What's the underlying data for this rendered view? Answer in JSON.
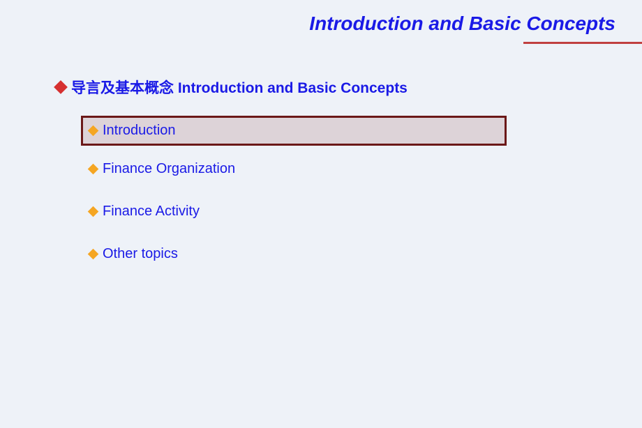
{
  "slide": {
    "title": "Introduction and Basic Concepts",
    "title_color": "#1a1ae6",
    "underline_color": "#c04040",
    "background_color": "#eef2f8"
  },
  "section": {
    "bullet_color": "#d63030",
    "title": "导言及基本概念 Introduction and Basic Concepts",
    "title_color": "#1a1ae6"
  },
  "items": [
    {
      "label": "Introduction",
      "highlighted": true
    },
    {
      "label": "Finance Organization",
      "highlighted": false
    },
    {
      "label": "Finance Activity",
      "highlighted": false
    },
    {
      "label": "Other topics",
      "highlighted": false
    }
  ],
  "item_style": {
    "bullet_color": "#f5a623",
    "text_color": "#1a1ae6",
    "highlight_background": "#ddd3d8",
    "highlight_border": "#6b1818"
  }
}
